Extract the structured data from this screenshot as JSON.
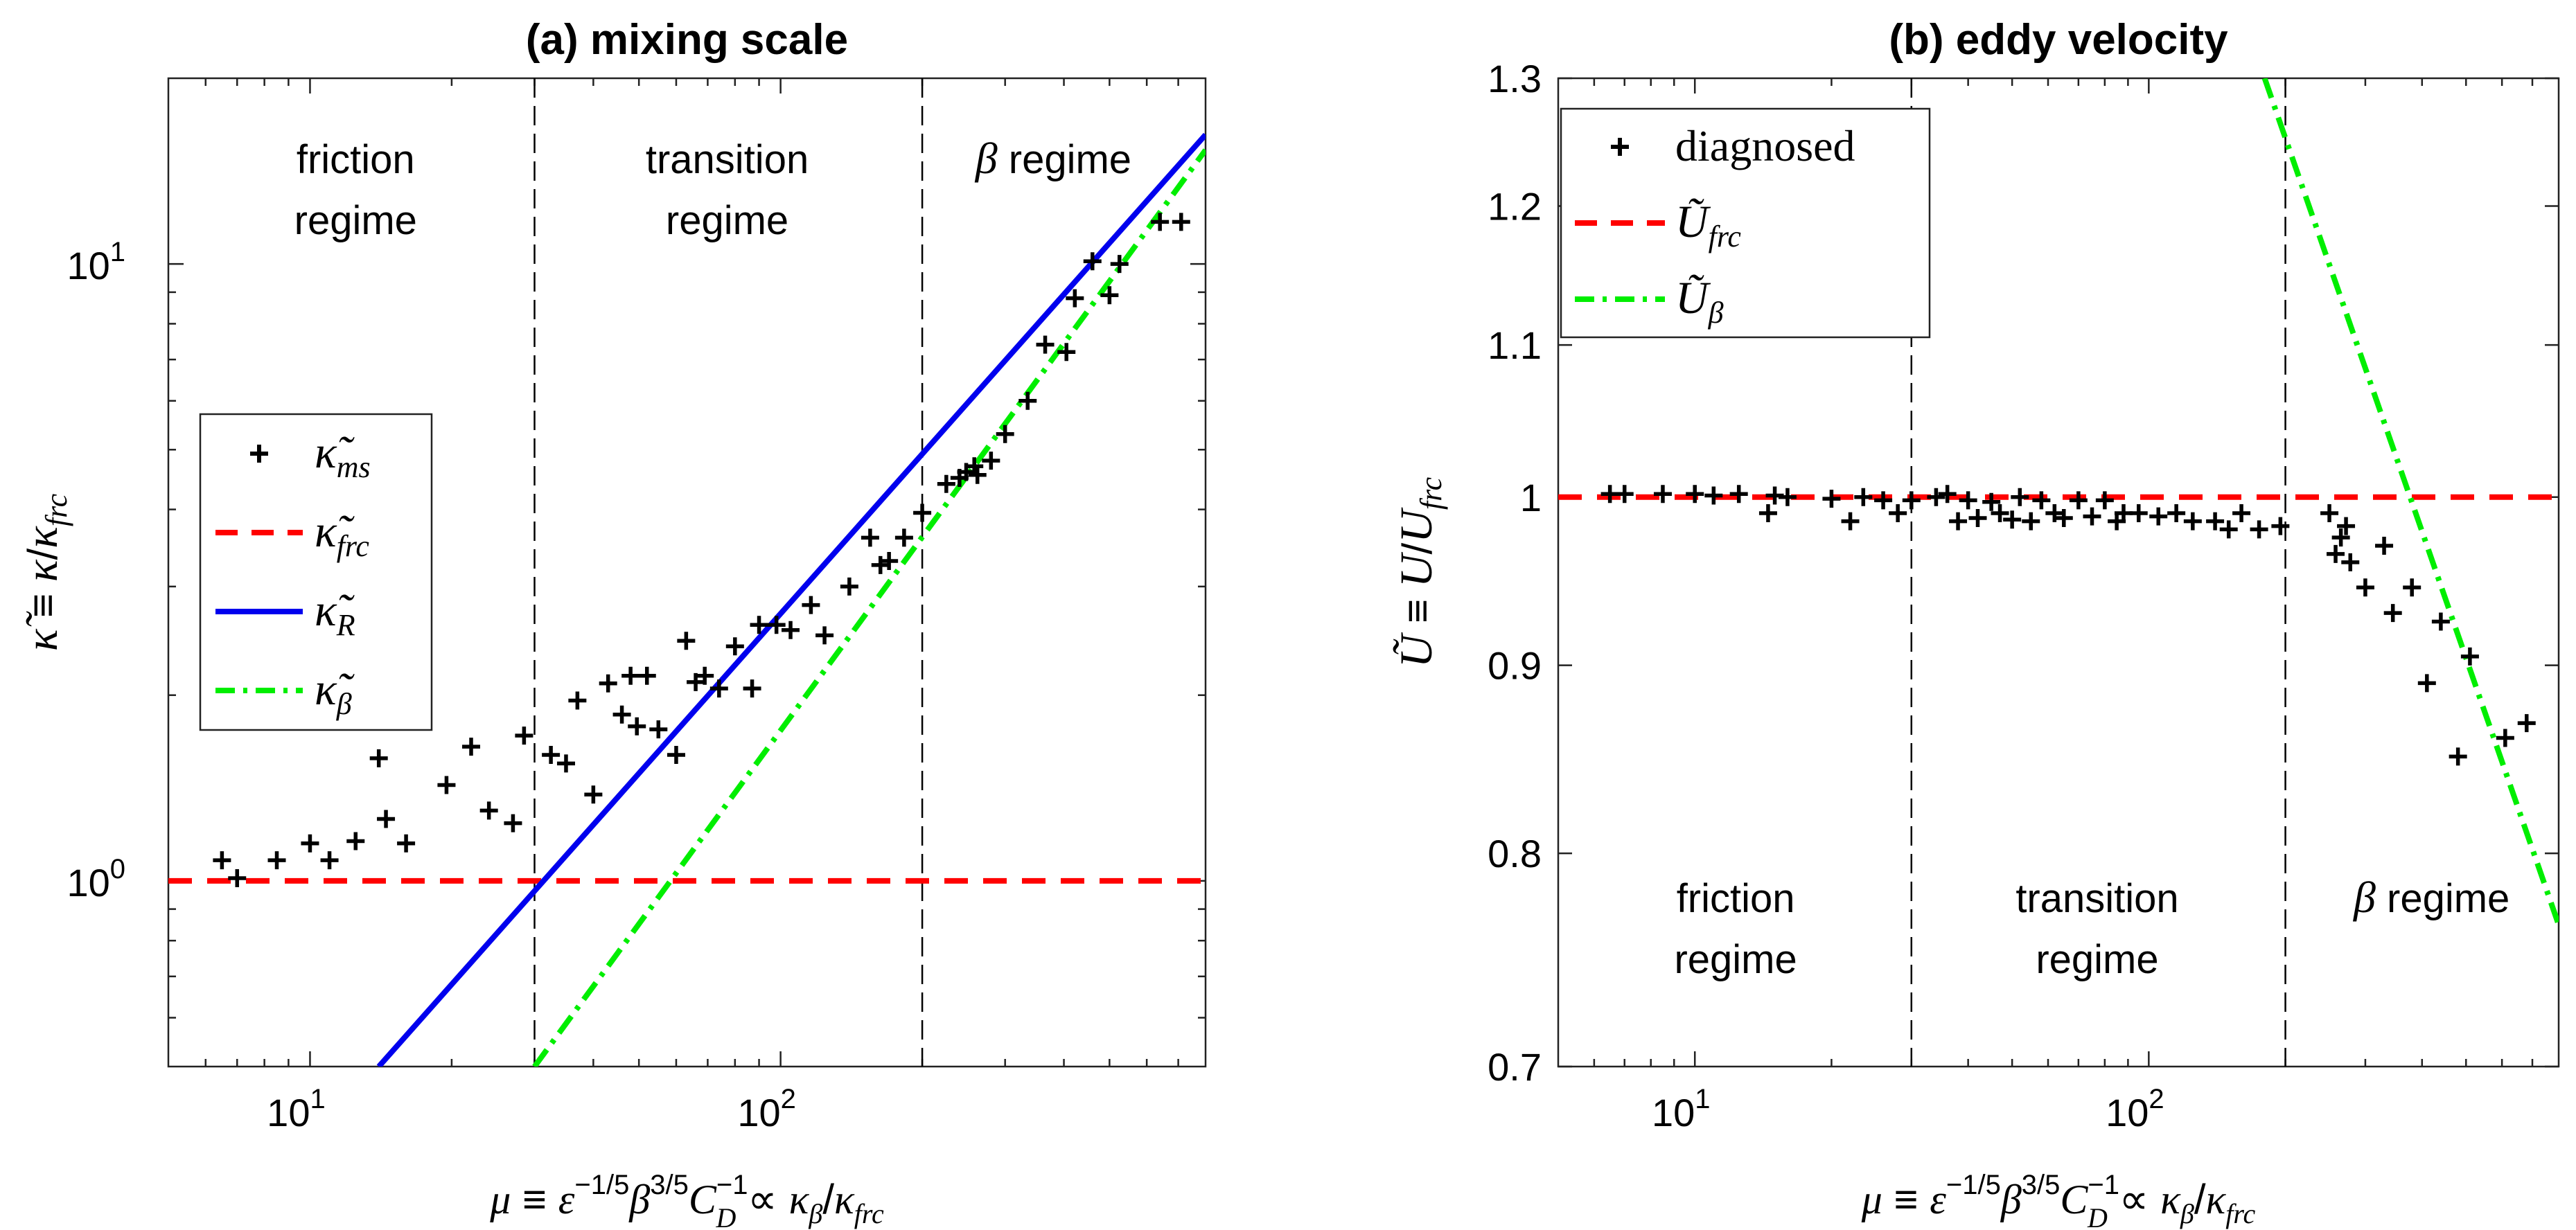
{
  "chart_data": [
    {
      "type": "scatter",
      "panel": "a",
      "title": "(a) mixing scale",
      "xscale": "log",
      "yscale": "log",
      "xlim": [
        5,
        800
      ],
      "ylim": [
        0.5,
        20
      ],
      "x_ticks": [
        10,
        100
      ],
      "x_tick_labels": [
        {
          "base": "10",
          "exp": "1"
        },
        {
          "base": "10",
          "exp": "2"
        }
      ],
      "y_ticks": [
        1,
        10
      ],
      "y_tick_labels": [
        {
          "base": "10",
          "exp": "0"
        },
        {
          "base": "10",
          "exp": "1"
        }
      ],
      "xlabel": "μ ≡ ε^(−1/5) β^(3/5) C_D^(−1) ∝ κ_β/κ_frc",
      "ylabel": "κ̃ ≡ κ/κ_frc",
      "regime_boundaries": [
        30,
        200
      ],
      "regime_labels": [
        {
          "lines": [
            "friction",
            "regime"
          ],
          "x": 12.5
        },
        {
          "lines": [
            "transition",
            "regime"
          ],
          "x": 77
        },
        {
          "lines": [
            "β regime"
          ],
          "x": 380
        }
      ],
      "legend": {
        "placement": "center-left",
        "entries": [
          {
            "key": "scatter",
            "label": "κ̃_ms"
          },
          {
            "key": "frc",
            "label": "κ̃_frc"
          },
          {
            "key": "R",
            "label": "κ̃_R"
          },
          {
            "key": "beta",
            "label": "κ̃_β"
          }
        ]
      },
      "series": [
        {
          "name": "κ̃_ms",
          "kind": "scatter",
          "marker": "+",
          "color": "#000000",
          "points": [
            [
              6.5,
              1.08
            ],
            [
              7,
              1.01
            ],
            [
              8.5,
              1.08
            ],
            [
              10,
              1.15
            ],
            [
              11,
              1.08
            ],
            [
              12.5,
              1.16
            ],
            [
              14,
              1.58
            ],
            [
              14.5,
              1.26
            ],
            [
              16,
              1.15
            ],
            [
              19.5,
              1.43
            ],
            [
              22,
              1.65
            ],
            [
              24,
              1.3
            ],
            [
              27,
              1.24
            ],
            [
              28.5,
              1.72
            ],
            [
              32.5,
              1.6
            ],
            [
              35,
              1.55
            ],
            [
              37,
              1.96
            ],
            [
              40,
              1.38
            ],
            [
              43,
              2.09
            ],
            [
              46,
              1.86
            ],
            [
              48,
              2.15
            ],
            [
              49.5,
              1.78
            ],
            [
              52,
              2.15
            ],
            [
              55,
              1.76
            ],
            [
              60,
              1.6
            ],
            [
              63,
              2.45
            ],
            [
              66,
              2.1
            ],
            [
              69,
              2.15
            ],
            [
              74,
              2.05
            ],
            [
              80,
              2.4
            ],
            [
              87,
              2.05
            ],
            [
              90,
              2.6
            ],
            [
              98,
              2.6
            ],
            [
              105,
              2.55
            ],
            [
              116,
              2.8
            ],
            [
              124,
              2.5
            ],
            [
              140,
              3.0
            ],
            [
              155,
              3.6
            ],
            [
              163,
              3.25
            ],
            [
              170,
              3.3
            ],
            [
              183,
              3.6
            ],
            [
              200,
              3.95
            ],
            [
              225,
              4.4
            ],
            [
              240,
              4.5
            ],
            [
              248,
              4.6
            ],
            [
              258,
              4.7
            ],
            [
              262,
              4.55
            ],
            [
              280,
              4.8
            ],
            [
              300,
              5.3
            ],
            [
              335,
              6.0
            ],
            [
              365,
              7.4
            ],
            [
              405,
              7.2
            ],
            [
              422,
              8.8
            ],
            [
              460,
              10.1
            ],
            [
              500,
              8.9
            ],
            [
              525,
              10.0
            ],
            [
              640,
              11.7
            ],
            [
              710,
              11.7
            ]
          ]
        },
        {
          "name": "κ̃_frc",
          "kind": "line",
          "style": "dashed",
          "color": "#ff0000",
          "points": [
            [
              5,
              1
            ],
            [
              800,
              1
            ]
          ]
        },
        {
          "name": "κ̃_R",
          "kind": "line",
          "style": "solid",
          "color": "#0000ee",
          "points": [
            [
              14,
              0.5
            ],
            [
              800,
              16.2
            ]
          ]
        },
        {
          "name": "κ̃_β",
          "kind": "line",
          "style": "dashdot",
          "color": "#00ee00",
          "points": [
            [
              30,
              0.5
            ],
            [
              800,
              15.3
            ]
          ]
        }
      ]
    },
    {
      "type": "scatter",
      "panel": "b",
      "title": "(b) eddy velocity",
      "xscale": "log",
      "yscale": "log",
      "xlim": [
        5,
        800
      ],
      "ylim": [
        0.7,
        1.3
      ],
      "x_ticks": [
        10,
        100
      ],
      "x_tick_labels": [
        {
          "base": "10",
          "exp": "1"
        },
        {
          "base": "10",
          "exp": "2"
        }
      ],
      "y_ticks": [
        0.7,
        0.8,
        0.9,
        1.0,
        1.1,
        1.2,
        1.3
      ],
      "y_tick_labels": [
        "0.7",
        "0.8",
        "0.9",
        "1",
        "1.1",
        "1.2",
        "1.3"
      ],
      "xlabel": "μ ≡ ε^(−1/5) β^(3/5) C_D^(−1) ∝ κ_β/κ_frc",
      "ylabel": "Ũ ≡ U/U_frc",
      "regime_boundaries": [
        30,
        200
      ],
      "regime_labels": [
        {
          "lines": [
            "friction",
            "regime"
          ],
          "x": 12.3
        },
        {
          "lines": [
            "transition",
            "regime"
          ],
          "x": 77
        },
        {
          "lines": [
            "β regime"
          ],
          "x": 420
        }
      ],
      "legend": {
        "placement": "top-left",
        "entries": [
          {
            "key": "scatter",
            "label": "diagnosed"
          },
          {
            "key": "frc",
            "label": "Ũ_frc"
          },
          {
            "key": "beta",
            "label": "Ũ_β"
          }
        ]
      },
      "series": [
        {
          "name": "diagnosed",
          "kind": "scatter",
          "marker": "+",
          "color": "#000000",
          "points": [
            [
              6.5,
              1.002
            ],
            [
              7,
              1.002
            ],
            [
              8.5,
              1.002
            ],
            [
              10,
              1.002
            ],
            [
              11,
              1.001
            ],
            [
              12.5,
              1.002
            ],
            [
              14.5,
              0.99
            ],
            [
              15,
              1.001
            ],
            [
              16,
              1.0
            ],
            [
              20,
              0.999
            ],
            [
              22,
              0.985
            ],
            [
              23.5,
              1.0
            ],
            [
              26,
              0.998
            ],
            [
              28,
              0.99
            ],
            [
              30,
              0.998
            ],
            [
              34,
              1.0
            ],
            [
              36,
              1.002
            ],
            [
              38,
              0.985
            ],
            [
              40,
              0.998
            ],
            [
              42,
              0.987
            ],
            [
              45,
              0.997
            ],
            [
              47,
              0.99
            ],
            [
              50,
              0.986
            ],
            [
              52,
              1.0
            ],
            [
              55,
              0.985
            ],
            [
              58,
              0.998
            ],
            [
              62,
              0.99
            ],
            [
              65,
              0.987
            ],
            [
              70,
              0.998
            ],
            [
              75,
              0.988
            ],
            [
              80,
              0.998
            ],
            [
              85,
              0.985
            ],
            [
              88,
              0.99
            ],
            [
              95,
              0.99
            ],
            [
              105,
              0.988
            ],
            [
              115,
              0.99
            ],
            [
              125,
              0.985
            ],
            [
              140,
              0.985
            ],
            [
              150,
              0.98
            ],
            [
              160,
              0.99
            ],
            [
              175,
              0.98
            ],
            [
              195,
              0.982
            ],
            [
              250,
              0.99
            ],
            [
              258,
              0.965
            ],
            [
              265,
              0.975
            ],
            [
              272,
              0.982
            ],
            [
              278,
              0.96
            ],
            [
              300,
              0.945
            ],
            [
              330,
              0.97
            ],
            [
              345,
              0.93
            ],
            [
              380,
              0.945
            ],
            [
              410,
              0.89
            ],
            [
              440,
              0.925
            ],
            [
              480,
              0.85
            ],
            [
              510,
              0.905
            ],
            [
              610,
              0.86
            ],
            [
              680,
              0.868
            ]
          ]
        },
        {
          "name": "Ũ_frc",
          "kind": "line",
          "style": "dashed",
          "color": "#ff0000",
          "points": [
            [
              5,
              1
            ],
            [
              800,
              1
            ]
          ]
        },
        {
          "name": "Ũ_β",
          "kind": "line",
          "style": "dashdot",
          "color": "#00ee00",
          "points": [
            [
              180,
              1.3
            ],
            [
              800,
              0.765
            ]
          ]
        }
      ]
    }
  ]
}
